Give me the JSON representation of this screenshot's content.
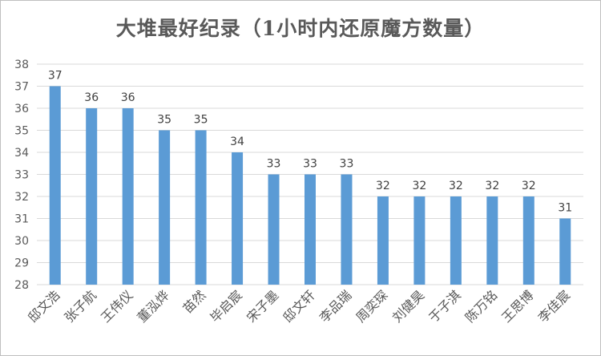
{
  "chart_data": {
    "type": "bar",
    "title": "大堆最好纪录（1小时内还原魔方数量）",
    "categories": [
      "邸文浩",
      "张子航",
      "王伟仪",
      "董泓烨",
      "苗然",
      "毕启宸",
      "宋子墨",
      "邸文轩",
      "李品瑞",
      "周奕琛",
      "刘健昊",
      "于子淇",
      "陈万铭",
      "王思博",
      "李佳宸"
    ],
    "values": [
      37,
      36,
      36,
      35,
      35,
      34,
      33,
      33,
      33,
      32,
      32,
      32,
      32,
      32,
      31
    ],
    "ylim": [
      28,
      38
    ],
    "yticks": [
      28,
      29,
      30,
      31,
      32,
      33,
      34,
      35,
      36,
      37,
      38
    ],
    "grid": true,
    "bar_color": "#5b9bd5",
    "grid_color": "#d9d9d9"
  }
}
